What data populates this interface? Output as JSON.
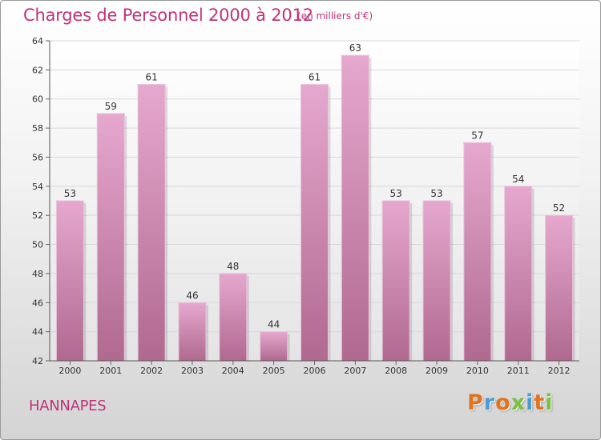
{
  "header": {
    "title": "Charges de Personnel 2000 à 2012",
    "subtitle": "(en milliers d'€)"
  },
  "footer": {
    "commune": "HANNAPES",
    "logo_text": "Proxiti"
  },
  "colors": {
    "title": "#c0337a",
    "bar_top": "#e6a8cf",
    "bar_bottom": "#b0698f",
    "logo_letters": [
      "#e2731e",
      "#4c9bd6",
      "#e2731e",
      "#7cc142",
      "#4c9bd6",
      "#e2731e",
      "#7cc142"
    ]
  },
  "chart_data": {
    "type": "bar",
    "title": "Charges de Personnel 2000 à 2012",
    "categories": [
      "2000",
      "2001",
      "2002",
      "2003",
      "2004",
      "2005",
      "2006",
      "2007",
      "2008",
      "2009",
      "2010",
      "2011",
      "2012"
    ],
    "values": [
      53,
      59,
      61,
      46,
      48,
      44,
      61,
      63,
      53,
      53,
      57,
      54,
      52
    ],
    "ylim": [
      42,
      64
    ],
    "yticks": [
      42,
      44,
      46,
      48,
      50,
      52,
      54,
      56,
      58,
      60,
      62,
      64
    ],
    "grid": true,
    "xlabel": "",
    "ylabel": ""
  }
}
